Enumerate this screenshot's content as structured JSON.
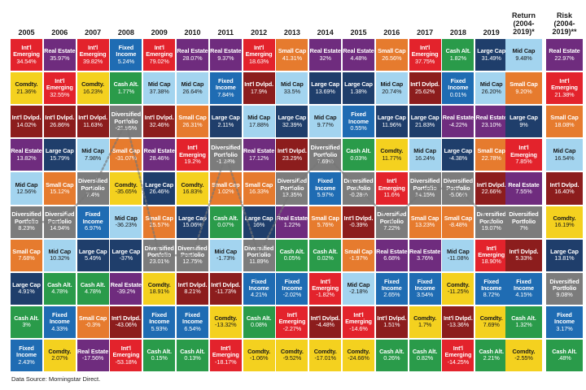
{
  "chart_data": {
    "type": "table",
    "years": [
      "2005",
      "2006",
      "2007",
      "2008",
      "2009",
      "2010",
      "2011",
      "2012",
      "2013",
      "2014",
      "2015",
      "2016",
      "2017",
      "2018",
      "2019"
    ],
    "summary_headers": [
      "Return\n(2004-\n2019)*",
      "Risk\n(2004-\n2019)**"
    ],
    "asset_classes": {
      "intl_emerging": {
        "label": "Int'l\nEmerging",
        "color": "#e3232c",
        "text": "#ffffff"
      },
      "real_estate": {
        "label": "Real Estate",
        "color": "#6f2c7e",
        "text": "#ffffff"
      },
      "fixed_income": {
        "label": "Fixed\nIncome",
        "color": "#1f6cb3",
        "text": "#ffffff"
      },
      "mid_cap": {
        "label": "Mid Cap",
        "color": "#a3d4ef",
        "text": "#1a1a1a"
      },
      "cash_alt": {
        "label": "Cash Alt.",
        "color": "#2a9b4a",
        "text": "#ffffff"
      },
      "large_cap": {
        "label": "Large Cap",
        "color": "#1f3e6b",
        "text": "#ffffff"
      },
      "small_cap": {
        "label": "Small Cap",
        "color": "#e67b2e",
        "text": "#ffffff"
      },
      "intl_dvlpd": {
        "label": "Int'l Dvlpd.",
        "color": "#8c1d1d",
        "text": "#ffffff"
      },
      "comdty": {
        "label": "Comdty.",
        "color": "#f4d11f",
        "text": "#1a1a1a"
      },
      "diversified": {
        "label": "Diversified\nPortfolio",
        "color": "#7c7c7c",
        "text": "#ffffff"
      }
    },
    "columns": [
      [
        [
          "intl_emerging",
          "34.54%"
        ],
        [
          "comdty",
          "21.36%"
        ],
        [
          "intl_dvlpd",
          "14.02%"
        ],
        [
          "real_estate",
          "13.82%"
        ],
        [
          "mid_cap",
          "12.56%"
        ],
        [
          "diversified",
          "8.23%"
        ],
        [
          "small_cap",
          "7.68%"
        ],
        [
          "large_cap",
          "4.91%"
        ],
        [
          "cash_alt",
          "3%"
        ],
        [
          "fixed_income",
          "2.43%"
        ]
      ],
      [
        [
          "real_estate",
          "35.97%"
        ],
        [
          "intl_emerging",
          "32.55%"
        ],
        [
          "intl_dvlpd",
          "26.86%"
        ],
        [
          "large_cap",
          "15.79%"
        ],
        [
          "small_cap",
          "15.12%"
        ],
        [
          "diversified",
          "14.94%"
        ],
        [
          "mid_cap",
          "10.32%"
        ],
        [
          "cash_alt",
          "4.78%"
        ],
        [
          "fixed_income",
          "4.33%"
        ],
        [
          "comdty",
          "2.07%"
        ]
      ],
      [
        [
          "intl_emerging",
          "39.82%"
        ],
        [
          "comdty",
          "16.23%"
        ],
        [
          "intl_dvlpd",
          "11.63%"
        ],
        [
          "mid_cap",
          "7.98%"
        ],
        [
          "diversified",
          "7.4%"
        ],
        [
          "fixed_income",
          "6.97%"
        ],
        [
          "large_cap",
          "5.49%"
        ],
        [
          "cash_alt",
          "4.78%"
        ],
        [
          "small_cap",
          "-0.3%"
        ],
        [
          "real_estate",
          "-17.56%"
        ]
      ],
      [
        [
          "fixed_income",
          "5.24%"
        ],
        [
          "cash_alt",
          "1.77%"
        ],
        [
          "diversified",
          "-21.95%"
        ],
        [
          "small_cap",
          "-31.07%"
        ],
        [
          "comdty",
          "-35.65%"
        ],
        [
          "mid_cap",
          "-36.23%"
        ],
        [
          "large_cap",
          "-37%"
        ],
        [
          "real_estate",
          "-39.2%"
        ],
        [
          "intl_dvlpd",
          "-43.06%"
        ],
        [
          "intl_emerging",
          "-53.18%"
        ]
      ],
      [
        [
          "intl_emerging",
          "79.02%"
        ],
        [
          "mid_cap",
          "37.38%"
        ],
        [
          "intl_dvlpd",
          "32.46%"
        ],
        [
          "real_estate",
          "28.46%"
        ],
        [
          "large_cap",
          "26.46%"
        ],
        [
          "small_cap",
          "25.57%"
        ],
        [
          "diversified",
          "23.01%"
        ],
        [
          "comdty",
          "18.91%"
        ],
        [
          "fixed_income",
          "5.93%"
        ],
        [
          "cash_alt",
          "0.15%"
        ]
      ],
      [
        [
          "real_estate",
          "28.07%"
        ],
        [
          "mid_cap",
          "26.64%"
        ],
        [
          "small_cap",
          "26.31%"
        ],
        [
          "intl_emerging",
          "19.2%"
        ],
        [
          "comdty",
          "16.83%"
        ],
        [
          "large_cap",
          "15.06%"
        ],
        [
          "diversified",
          "12.75%"
        ],
        [
          "intl_dvlpd",
          "8.21%"
        ],
        [
          "fixed_income",
          "6.54%"
        ],
        [
          "cash_alt",
          "0.13%"
        ]
      ],
      [
        [
          "real_estate",
          "9.37%"
        ],
        [
          "fixed_income",
          "7.84%"
        ],
        [
          "large_cap",
          "2.11%"
        ],
        [
          "diversified",
          "-1.28%"
        ],
        [
          "small_cap",
          "1.02%"
        ],
        [
          "cash_alt",
          "0.07%"
        ],
        [
          "mid_cap",
          "-1.73%"
        ],
        [
          "intl_dvlpd",
          "-11.73%"
        ],
        [
          "comdty",
          "-13.32%"
        ],
        [
          "intl_emerging",
          "-18.17%"
        ]
      ],
      [
        [
          "intl_emerging",
          "18.63%"
        ],
        [
          "intl_dvlpd",
          "17.9%"
        ],
        [
          "mid_cap",
          "17.88%"
        ],
        [
          "real_estate",
          "17.12%"
        ],
        [
          "small_cap",
          "16.33%"
        ],
        [
          "large_cap",
          "16%"
        ],
        [
          "diversified",
          "11.89%"
        ],
        [
          "fixed_income",
          "4.21%"
        ],
        [
          "cash_alt",
          "0.08%"
        ],
        [
          "comdty",
          "-1.06%"
        ]
      ],
      [
        [
          "small_cap",
          "41.31%"
        ],
        [
          "mid_cap",
          "33.5%"
        ],
        [
          "large_cap",
          "32.39%"
        ],
        [
          "intl_dvlpd",
          "23.29%"
        ],
        [
          "diversified",
          "13.35%"
        ],
        [
          "real_estate",
          "1.22%"
        ],
        [
          "cash_alt",
          "0.05%"
        ],
        [
          "fixed_income",
          "-2.02%"
        ],
        [
          "intl_emerging",
          "-2.27%"
        ],
        [
          "comdty",
          "-9.52%"
        ]
      ],
      [
        [
          "real_estate",
          "32%"
        ],
        [
          "large_cap",
          "13.69%"
        ],
        [
          "mid_cap",
          "9.77%"
        ],
        [
          "diversified",
          "7.69%"
        ],
        [
          "fixed_income",
          "5.97%"
        ],
        [
          "small_cap",
          "5.76%"
        ],
        [
          "cash_alt",
          "0.02%"
        ],
        [
          "intl_emerging",
          "-1.82%"
        ],
        [
          "intl_dvlpd",
          "-4.48%"
        ],
        [
          "comdty",
          "-17.01%"
        ]
      ],
      [
        [
          "real_estate",
          "4.48%"
        ],
        [
          "large_cap",
          "1.38%"
        ],
        [
          "fixed_income",
          "0.55%"
        ],
        [
          "cash_alt",
          "0.03%"
        ],
        [
          "diversified",
          "-0.28%"
        ],
        [
          "intl_dvlpd",
          "-0.39%"
        ],
        [
          "small_cap",
          "-1.97%"
        ],
        [
          "mid_cap",
          "-2.18%"
        ],
        [
          "intl_emerging",
          "-14.6%"
        ],
        [
          "comdty",
          "-24.66%"
        ]
      ],
      [
        [
          "small_cap",
          "26.56%"
        ],
        [
          "mid_cap",
          "20.74%"
        ],
        [
          "large_cap",
          "11.96%"
        ],
        [
          "comdty",
          "11.77%"
        ],
        [
          "intl_emerging",
          "11.6%"
        ],
        [
          "diversified",
          "7.22%"
        ],
        [
          "real_estate",
          "6.68%"
        ],
        [
          "fixed_income",
          "2.65%"
        ],
        [
          "intl_dvlpd",
          "1.51%"
        ],
        [
          "cash_alt",
          "0.26%"
        ]
      ],
      [
        [
          "intl_emerging",
          "37.75%"
        ],
        [
          "intl_dvlpd",
          "25.62%"
        ],
        [
          "large_cap",
          "21.83%"
        ],
        [
          "mid_cap",
          "16.24%"
        ],
        [
          "diversified",
          "14.15%"
        ],
        [
          "small_cap",
          "13.23%"
        ],
        [
          "real_estate",
          "3.76%"
        ],
        [
          "fixed_income",
          "3.54%"
        ],
        [
          "comdty",
          "1.7%"
        ],
        [
          "cash_alt",
          "0.82%"
        ]
      ],
      [
        [
          "cash_alt",
          "1.82%"
        ],
        [
          "fixed_income",
          "0.01%"
        ],
        [
          "real_estate",
          "-4.22%"
        ],
        [
          "large_cap",
          "-4.38%"
        ],
        [
          "diversified",
          "-5.06%"
        ],
        [
          "small_cap",
          "-8.48%"
        ],
        [
          "mid_cap",
          "-11.08%"
        ],
        [
          "comdty",
          "-11.25%"
        ],
        [
          "intl_dvlpd",
          "-13.36%"
        ],
        [
          "intl_emerging",
          "-14.25%"
        ]
      ],
      [
        [
          "large_cap",
          "31.49%"
        ],
        [
          "mid_cap",
          "26.20%"
        ],
        [
          "real_estate",
          "23.10%"
        ],
        [
          "small_cap",
          "22.78%"
        ],
        [
          "intl_dvlpd",
          "22.66%"
        ],
        [
          "diversified",
          "19.07%"
        ],
        [
          "intl_emerging",
          "18.90%"
        ],
        [
          "fixed_income",
          "8.72%"
        ],
        [
          "comdty",
          "7.69%"
        ],
        [
          "cash_alt",
          "2.21%"
        ]
      ]
    ],
    "return_column": [
      [
        "mid_cap",
        "9.48%"
      ],
      [
        "small_cap",
        "9.20%"
      ],
      [
        "large_cap",
        "9%"
      ],
      [
        "intl_emerging",
        "7.85%"
      ],
      [
        "real_estate",
        "7.55%"
      ],
      [
        "diversified",
        "7%"
      ],
      [
        "intl_dvlpd",
        "5.33%"
      ],
      [
        "fixed_income",
        "4.15%"
      ],
      [
        "cash_alt",
        "1.32%"
      ],
      [
        "comdty",
        "-2.55%"
      ]
    ],
    "risk_column": [
      [
        "real_estate",
        "22.97%"
      ],
      [
        "intl_emerging",
        "21.38%"
      ],
      [
        "small_cap",
        "18.08%"
      ],
      [
        "mid_cap",
        "16.54%"
      ],
      [
        "intl_dvlpd",
        "16.40%"
      ],
      [
        "comdty",
        "16.19%"
      ],
      [
        "large_cap",
        "13.81%"
      ],
      [
        "diversified",
        "9.08%"
      ],
      [
        "fixed_income",
        "3.17%"
      ],
      [
        "cash_alt",
        ".48%"
      ]
    ]
  },
  "footer": {
    "source": "Data Source: Morningstar Direct."
  }
}
